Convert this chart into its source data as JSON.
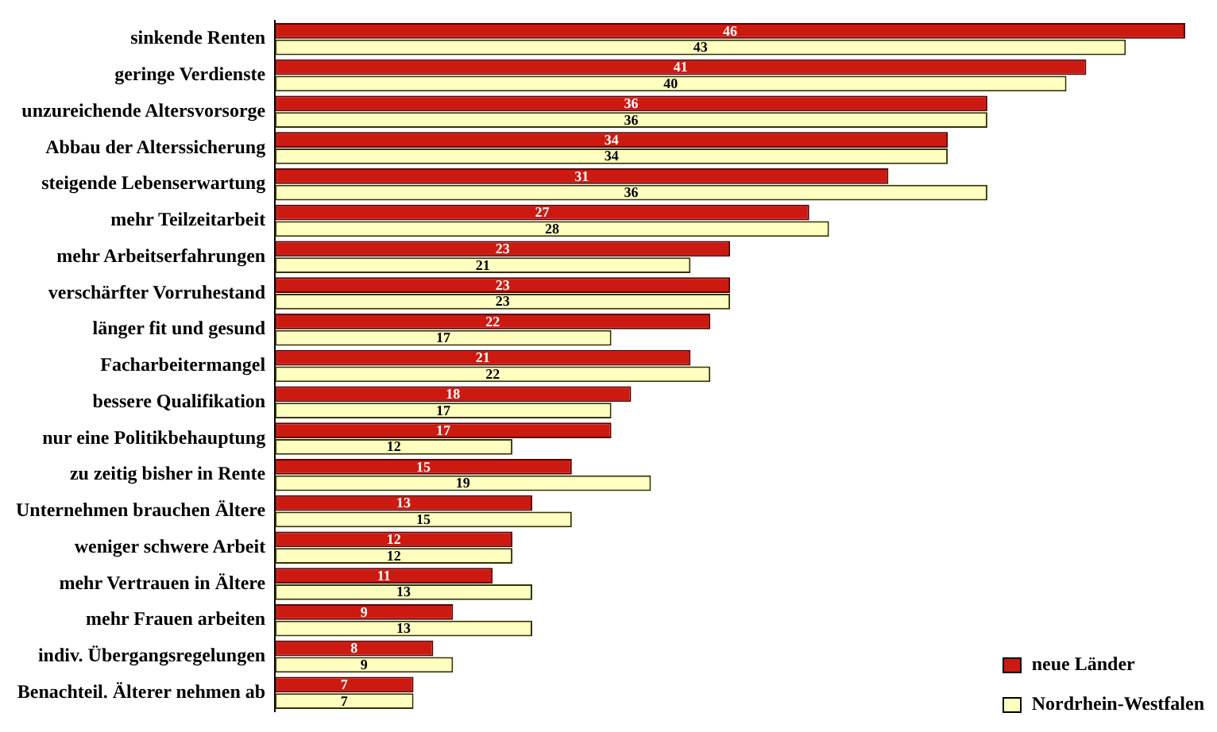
{
  "chart_data": {
    "type": "bar",
    "orientation": "horizontal",
    "data_labels": true,
    "legend": "bottom right",
    "grid": false,
    "tick_labels": "y",
    "categories": [
      "sinkende Renten",
      "geringe Verdienste",
      "unzureichende Altersvorsorge",
      "Abbau der Alterssicherung",
      "steigende Lebenserwartung",
      "mehr Teilzeitarbeit",
      "mehr Arbeitserfahrungen",
      "verschärfter Vorruhestand",
      "länger fit und gesund",
      "Facharbeitermangel",
      "bessere Qualifikation",
      "nur eine Politikbehauptung",
      "zu zeitig bisher in Rente",
      "Unternehmen brauchen Ältere",
      "weniger schwere Arbeit",
      "mehr Vertrauen in Ältere",
      "mehr Frauen arbeiten",
      "indiv. Übergangsregelungen",
      "Benachteil. Älterer nehmen ab"
    ],
    "series": [
      {
        "name": "neue Länder",
        "color": "#cc1a10",
        "values": [
          46,
          41,
          36,
          34,
          31,
          27,
          23,
          23,
          22,
          21,
          18,
          17,
          15,
          13,
          12,
          11,
          9,
          8,
          7
        ]
      },
      {
        "name": "Nordrhein-Westfalen",
        "color": "#ffffc0",
        "values": [
          43,
          40,
          36,
          34,
          36,
          28,
          21,
          23,
          17,
          22,
          17,
          12,
          19,
          15,
          12,
          13,
          13,
          9,
          7
        ]
      }
    ]
  }
}
